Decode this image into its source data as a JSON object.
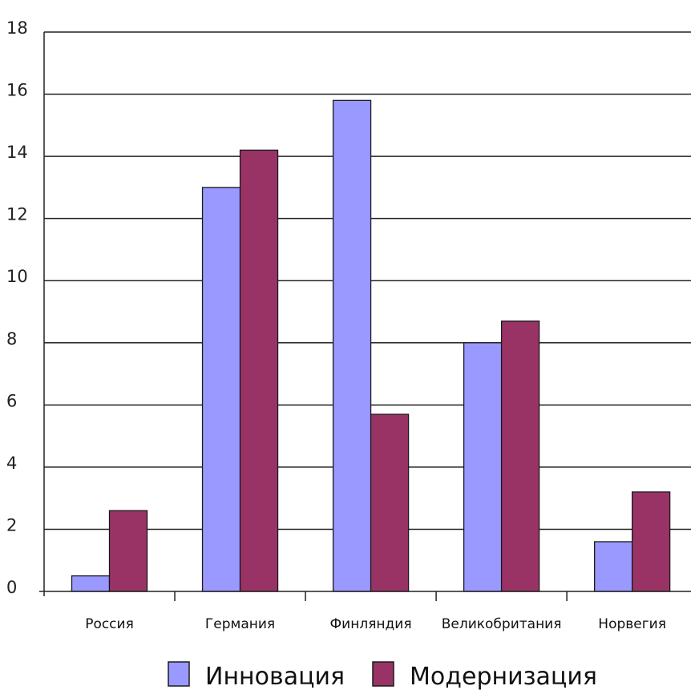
{
  "chart_data": {
    "type": "bar",
    "categories": [
      "Россия",
      "Германия",
      "Финляндия",
      "Великобритания",
      "Норвегия"
    ],
    "series": [
      {
        "name": "Инновация",
        "values": [
          0.5,
          13,
          15.8,
          8,
          1.6
        ],
        "color": "#9999ff"
      },
      {
        "name": "Модернизация",
        "values": [
          2.6,
          14.2,
          5.7,
          8.7,
          3.2
        ],
        "color": "#993366"
      }
    ],
    "ylim": [
      0,
      18
    ],
    "yticks": [
      "0",
      "2",
      "4",
      "6",
      "8",
      "10",
      "12",
      "14",
      "16",
      "18"
    ],
    "grid": true,
    "legend_position": "bottom"
  }
}
